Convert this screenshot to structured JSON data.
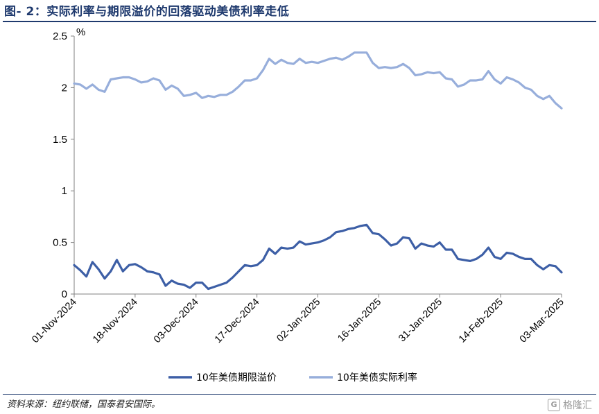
{
  "title": "图- 2：实际利率与期限溢价的回落驱动美债利率走低",
  "source": "资料来源：纽约联储，国泰君安国际。",
  "watermark": "格隆汇",
  "colors": {
    "term_premium": "#3d5fa6",
    "real_rate": "#97aedb",
    "title": "#1f3a6e"
  },
  "chart_data": {
    "type": "line",
    "unit": "%",
    "ylim": [
      0,
      2.5
    ],
    "yticks": [
      0,
      0.5,
      1,
      1.5,
      2,
      2.5
    ],
    "ytick_labels": [
      "0",
      "0.5",
      "1",
      "1.5",
      "2",
      "2.5"
    ],
    "xtick_labels": [
      "01-Nov-2024",
      "18-Nov-2024",
      "03-Dec-2024",
      "17-Dec-2024",
      "02-Jan-2025",
      "16-Jan-2025",
      "31-Jan-2025",
      "14-Feb-2025",
      "03-Mar-2025"
    ],
    "xtick_index": [
      0,
      10,
      20,
      30,
      40,
      50,
      60,
      70,
      80
    ],
    "series": [
      {
        "name": "10年美债期限溢价",
        "color": "#3d5fa6",
        "values": [
          0.28,
          0.23,
          0.17,
          0.31,
          0.24,
          0.15,
          0.22,
          0.33,
          0.22,
          0.28,
          0.29,
          0.26,
          0.22,
          0.21,
          0.19,
          0.08,
          0.13,
          0.1,
          0.09,
          0.06,
          0.11,
          0.11,
          0.05,
          0.07,
          0.09,
          0.11,
          0.16,
          0.22,
          0.28,
          0.27,
          0.28,
          0.33,
          0.44,
          0.39,
          0.45,
          0.44,
          0.45,
          0.51,
          0.48,
          0.49,
          0.5,
          0.52,
          0.55,
          0.6,
          0.61,
          0.63,
          0.64,
          0.66,
          0.67,
          0.59,
          0.58,
          0.53,
          0.47,
          0.49,
          0.55,
          0.54,
          0.44,
          0.49,
          0.47,
          0.46,
          0.5,
          0.43,
          0.43,
          0.34,
          0.33,
          0.32,
          0.34,
          0.38,
          0.45,
          0.36,
          0.34,
          0.4,
          0.39,
          0.36,
          0.34,
          0.34,
          0.28,
          0.24,
          0.28,
          0.27,
          0.21
        ]
      },
      {
        "name": "10年美债实际利率",
        "color": "#97aedb",
        "values": [
          2.04,
          2.03,
          1.99,
          2.03,
          1.98,
          1.96,
          2.08,
          2.09,
          2.1,
          2.1,
          2.08,
          2.05,
          2.06,
          2.09,
          2.07,
          1.98,
          2.02,
          1.99,
          1.92,
          1.93,
          1.95,
          1.9,
          1.92,
          1.91,
          1.93,
          1.93,
          1.96,
          2.01,
          2.07,
          2.07,
          2.09,
          2.17,
          2.28,
          2.23,
          2.27,
          2.24,
          2.23,
          2.28,
          2.24,
          2.25,
          2.24,
          2.26,
          2.28,
          2.29,
          2.27,
          2.3,
          2.34,
          2.34,
          2.34,
          2.24,
          2.19,
          2.2,
          2.19,
          2.2,
          2.23,
          2.19,
          2.12,
          2.13,
          2.15,
          2.14,
          2.15,
          2.09,
          2.08,
          2.01,
          2.03,
          2.07,
          2.07,
          2.08,
          2.16,
          2.08,
          2.04,
          2.1,
          2.08,
          2.05,
          2.0,
          1.98,
          1.92,
          1.89,
          1.92,
          1.85,
          1.8
        ]
      }
    ]
  }
}
